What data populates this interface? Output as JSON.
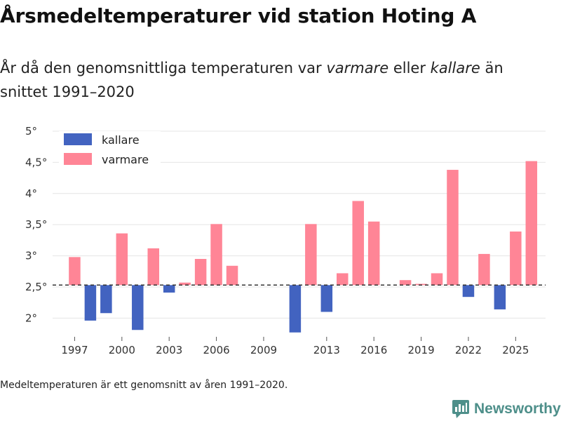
{
  "header": {
    "title": "Årsmedeltemperaturer vid station Hoting A",
    "subtitle_part1": "År då den genomsnittliga temperaturen var ",
    "subtitle_warm": "varmare",
    "subtitle_part2": " eller ",
    "subtitle_cold": "kallare",
    "subtitle_part3": " än snittet 1991–2020"
  },
  "footer": {
    "note": "Medeltemperaturen är ett genomsnitt av åren 1991–2020.",
    "brand": "Newsworthy"
  },
  "colors": {
    "colder": "#4263c0",
    "warmer": "#ff8596",
    "baseline": "#333333",
    "grid": "#e4e4e4",
    "brand": "#4e8f8a"
  },
  "chart_data": {
    "type": "bar",
    "baseline": 2.53,
    "ylim": [
      1.7,
      5
    ],
    "yticks": [
      2,
      2.5,
      3,
      3.5,
      4,
      4.5,
      5
    ],
    "ytick_labels": [
      "2°",
      "2,5°",
      "3°",
      "3,5°",
      "4°",
      "4,5°",
      "5°"
    ],
    "xticks": [
      1997,
      2000,
      2003,
      2006,
      2009,
      2013,
      2016,
      2019,
      2022,
      2025
    ],
    "xlim": [
      1995.6,
      2026.9
    ],
    "legend": [
      {
        "key": "colder",
        "label": "kallare"
      },
      {
        "key": "warmer",
        "label": "varmare"
      }
    ],
    "legend_position": "top-left",
    "points": [
      {
        "year": 1997,
        "value": 2.98
      },
      {
        "year": 1998,
        "value": 1.96
      },
      {
        "year": 1999,
        "value": 2.08
      },
      {
        "year": 2000,
        "value": 3.36
      },
      {
        "year": 2001,
        "value": 1.81
      },
      {
        "year": 2002,
        "value": 3.12
      },
      {
        "year": 2003,
        "value": 2.41
      },
      {
        "year": 2004,
        "value": 2.57
      },
      {
        "year": 2005,
        "value": 2.95
      },
      {
        "year": 2006,
        "value": 3.51
      },
      {
        "year": 2007,
        "value": 2.84
      },
      {
        "year": 2011,
        "value": 1.77
      },
      {
        "year": 2012,
        "value": 3.51
      },
      {
        "year": 2013,
        "value": 2.1
      },
      {
        "year": 2014,
        "value": 2.72
      },
      {
        "year": 2015,
        "value": 3.88
      },
      {
        "year": 2016,
        "value": 3.55
      },
      {
        "year": 2018,
        "value": 2.61
      },
      {
        "year": 2019,
        "value": 2.55
      },
      {
        "year": 2020,
        "value": 2.72
      },
      {
        "year": 2021,
        "value": 4.38
      },
      {
        "year": 2022,
        "value": 2.34
      },
      {
        "year": 2023,
        "value": 3.03
      },
      {
        "year": 2024,
        "value": 2.14
      },
      {
        "year": 2025,
        "value": 3.39
      },
      {
        "year": 2026,
        "value": 4.52
      }
    ]
  }
}
